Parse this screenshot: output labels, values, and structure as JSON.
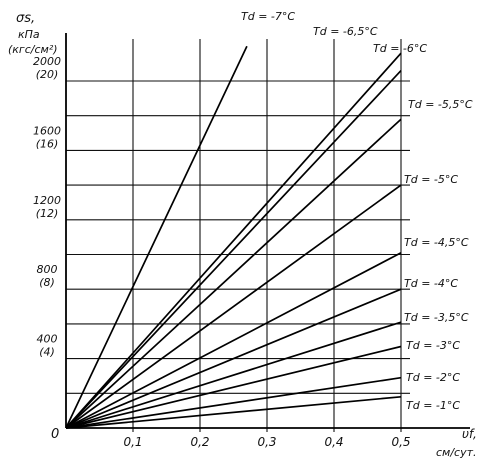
{
  "chart_data": {
    "type": "line",
    "ylabel_lines": [
      "σs,",
      "кПа",
      "(кгс/см²)"
    ],
    "xlabel_lines": [
      "υf,",
      "см/сут."
    ],
    "origin_label": "0",
    "x_ticks": [
      {
        "value": 0.1,
        "label": "0,1"
      },
      {
        "value": 0.2,
        "label": "0,2"
      },
      {
        "value": 0.3,
        "label": "0,3"
      },
      {
        "value": 0.4,
        "label": "0,4"
      },
      {
        "value": 0.5,
        "label": "0,5"
      }
    ],
    "y_ticks": [
      {
        "value": 400,
        "label": "400",
        "sub": "(4)"
      },
      {
        "value": 800,
        "label": "800",
        "sub": "(8)"
      },
      {
        "value": 1200,
        "label": "1200",
        "sub": "(12)"
      },
      {
        "value": 1600,
        "label": "1600",
        "sub": "(16)"
      },
      {
        "value": 2000,
        "label": "2000",
        "sub": "(20)"
      }
    ],
    "xlim": [
      0,
      0.5
    ],
    "ylim": [
      0,
      2000
    ],
    "grid": true,
    "series": [
      {
        "name": "Td = -7°C",
        "x": [
          0,
          0.27
        ],
        "y": [
          0,
          2200
        ]
      },
      {
        "name": "Td = -6,5°C",
        "x": [
          0,
          0.5
        ],
        "y": [
          0,
          2160
        ]
      },
      {
        "name": "Td = -6°C",
        "x": [
          0,
          0.5
        ],
        "y": [
          0,
          2060
        ]
      },
      {
        "name": "Td = -5,5°C",
        "x": [
          0,
          0.5
        ],
        "y": [
          0,
          1780
        ]
      },
      {
        "name": "Td = -5°C",
        "x": [
          0,
          0.5
        ],
        "y": [
          0,
          1400
        ]
      },
      {
        "name": "Td = -4,5°C",
        "x": [
          0,
          0.5
        ],
        "y": [
          0,
          1010
        ]
      },
      {
        "name": "Td = -4°C",
        "x": [
          0,
          0.5
        ],
        "y": [
          0,
          800
        ]
      },
      {
        "name": "Td = -3,5°C",
        "x": [
          0,
          0.5
        ],
        "y": [
          0,
          610
        ]
      },
      {
        "name": "Td = -3°C",
        "x": [
          0,
          0.5
        ],
        "y": [
          0,
          470
        ]
      },
      {
        "name": "Td = -2°C",
        "x": [
          0,
          0.5
        ],
        "y": [
          0,
          290
        ]
      },
      {
        "name": "Td = -1°C",
        "x": [
          0,
          0.5
        ],
        "y": [
          0,
          180
        ]
      }
    ],
    "series_labels": [
      "Td = -7°C",
      "Td = -6,5°C",
      "Td = -6°C",
      "Td = -5,5°C",
      "Td = -5°C",
      "Td = -4,5°C",
      "Td = -4°C",
      "Td = -3,5°C",
      "Td = -3°C",
      "Td = -2°C",
      "Td = -1°C"
    ]
  }
}
